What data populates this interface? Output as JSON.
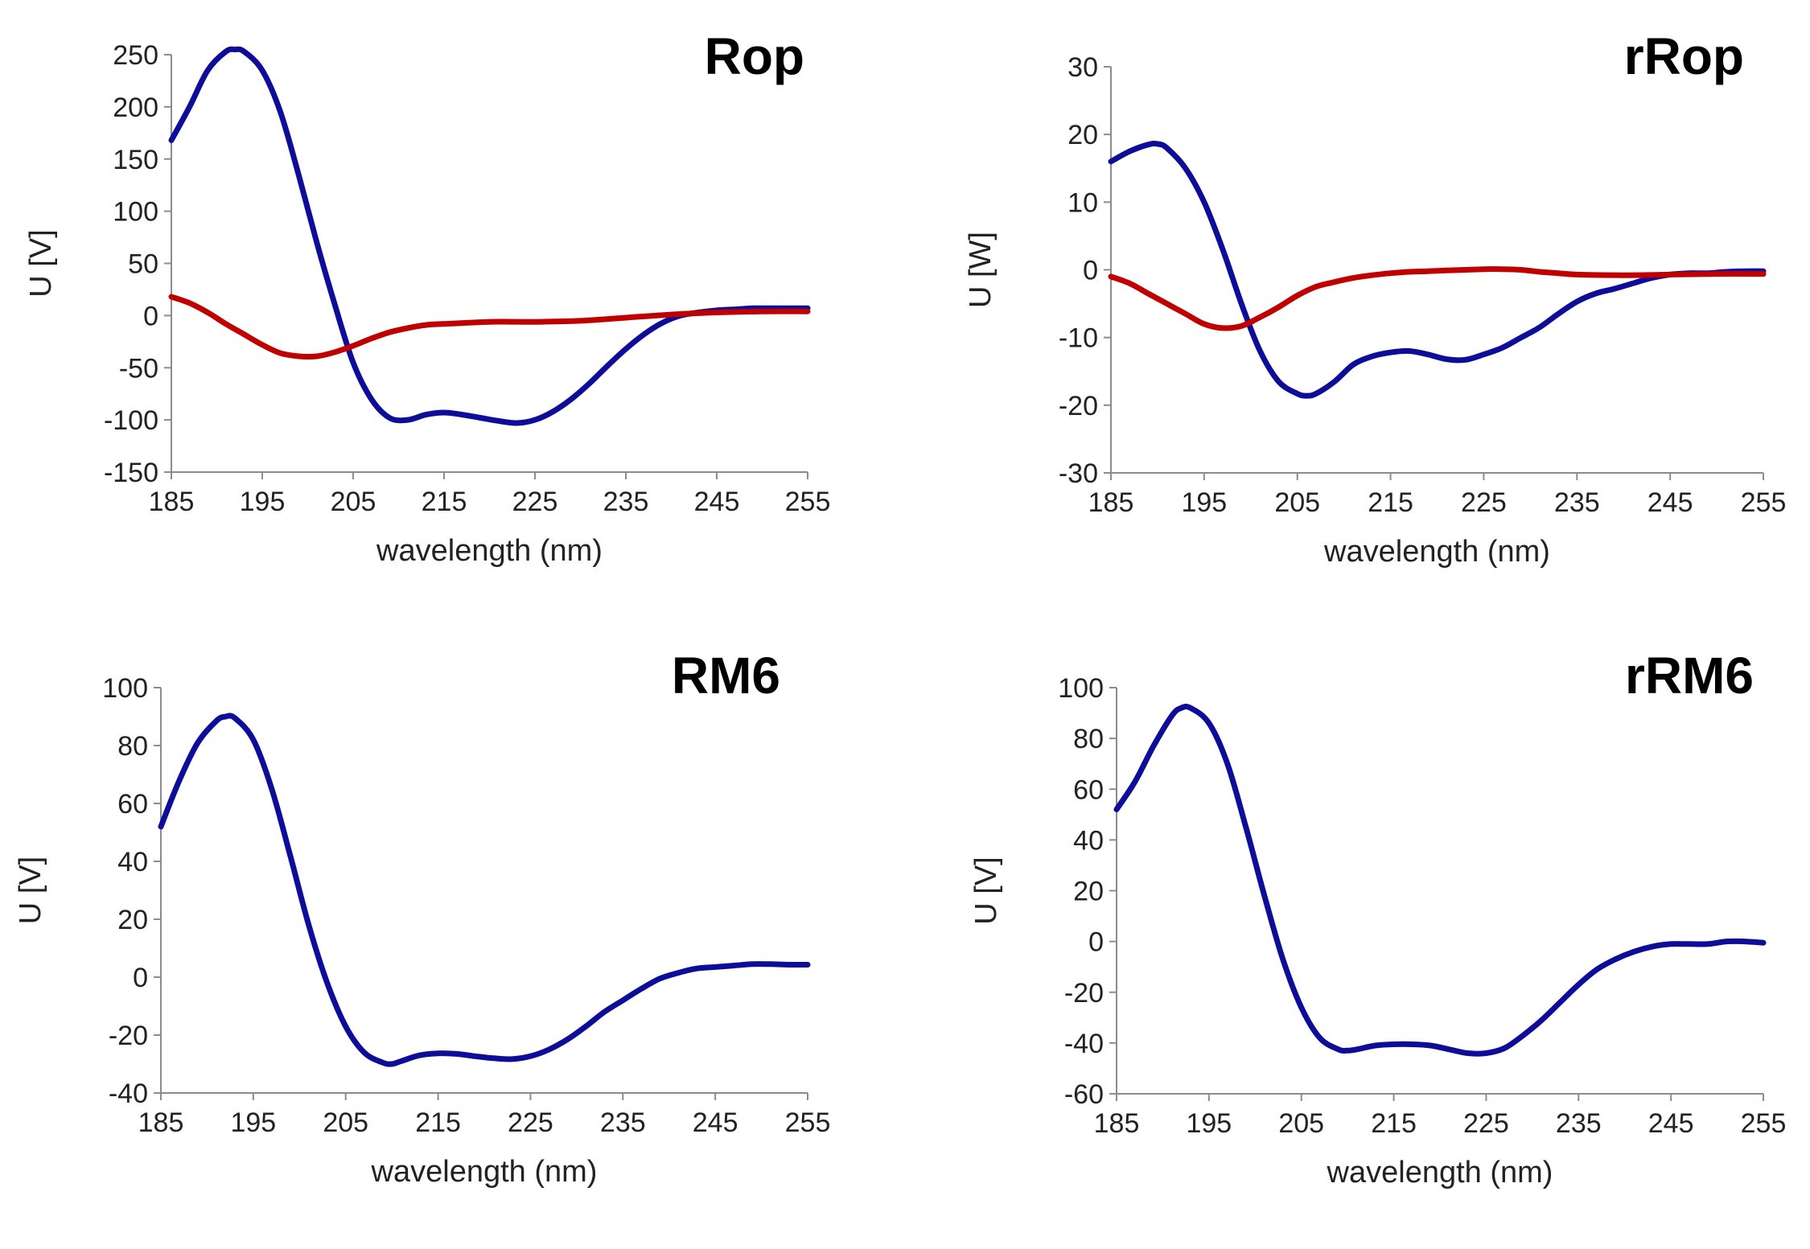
{
  "chart_data": [
    {
      "type": "line",
      "title": "Rop",
      "xlabel": "wavelength (nm)",
      "ylabel": "U [V]",
      "xlim": [
        185,
        255
      ],
      "ylim": [
        -150,
        250
      ],
      "xticks": [
        "185",
        "195",
        "205",
        "215",
        "225",
        "235",
        "245",
        "255"
      ],
      "yticks": [
        "-150",
        "-100",
        "-50",
        "0",
        "50",
        "100",
        "150",
        "200",
        "250"
      ],
      "series": [
        {
          "name": "blue",
          "color": "#0d0d99",
          "x": [
            185,
            187,
            189,
            191,
            192,
            193,
            195,
            197,
            199,
            201,
            203,
            205,
            207,
            209,
            211,
            213,
            215,
            217,
            219,
            221,
            223,
            225,
            227,
            229,
            231,
            233,
            235,
            237,
            239,
            241,
            243,
            245,
            247,
            249,
            251,
            253,
            255
          ],
          "y": [
            168,
            200,
            235,
            253,
            255,
            253,
            235,
            195,
            135,
            70,
            10,
            -45,
            -80,
            -98,
            -100,
            -95,
            -93,
            -95,
            -98,
            -101,
            -103,
            -100,
            -92,
            -80,
            -65,
            -48,
            -32,
            -18,
            -7,
            0,
            3,
            5,
            6,
            7,
            7,
            7,
            7
          ]
        },
        {
          "name": "red",
          "color": "#c00000",
          "x": [
            185,
            187,
            189,
            191,
            193,
            195,
            197,
            199,
            201,
            203,
            205,
            207,
            209,
            211,
            213,
            215,
            220,
            225,
            230,
            235,
            240,
            245,
            250,
            255
          ],
          "y": [
            18,
            12,
            3,
            -8,
            -18,
            -28,
            -36,
            -39,
            -39,
            -35,
            -29,
            -22,
            -16,
            -12,
            -9,
            -8,
            -6,
            -6,
            -5,
            -2,
            1,
            3,
            4,
            4
          ]
        }
      ]
    },
    {
      "type": "line",
      "title": "rRop",
      "xlabel": "wavelength (nm)",
      "ylabel": "U [W]",
      "xlim": [
        185,
        255
      ],
      "ylim": [
        -30,
        30
      ],
      "xticks": [
        "185",
        "195",
        "205",
        "215",
        "225",
        "235",
        "245",
        "255"
      ],
      "yticks": [
        "-30",
        "-20",
        "-10",
        "0",
        "10",
        "20",
        "30"
      ],
      "series": [
        {
          "name": "blue",
          "color": "#0d0d99",
          "x": [
            185,
            187,
            189,
            190,
            191,
            193,
            195,
            197,
            199,
            201,
            203,
            205,
            206,
            207,
            209,
            211,
            213,
            215,
            217,
            219,
            221,
            223,
            225,
            227,
            229,
            231,
            233,
            235,
            237,
            239,
            241,
            243,
            245,
            247,
            249,
            251,
            253,
            255
          ],
          "y": [
            16,
            17.5,
            18.5,
            18.6,
            18,
            15,
            10,
            3,
            -5,
            -12,
            -16.5,
            -18.3,
            -18.6,
            -18.3,
            -16.5,
            -14,
            -12.8,
            -12.2,
            -12,
            -12.5,
            -13.2,
            -13.3,
            -12.5,
            -11.5,
            -10,
            -8.5,
            -6.5,
            -4.7,
            -3.5,
            -2.8,
            -2,
            -1.2,
            -0.7,
            -0.5,
            -0.5,
            -0.3,
            -0.2,
            -0.2
          ]
        },
        {
          "name": "red",
          "color": "#c00000",
          "x": [
            185,
            187,
            189,
            191,
            193,
            195,
            197,
            199,
            201,
            203,
            205,
            207,
            209,
            211,
            213,
            215,
            217,
            219,
            221,
            223,
            225,
            227,
            229,
            231,
            233,
            235,
            240,
            245,
            250,
            255
          ],
          "y": [
            -1,
            -2,
            -3.5,
            -5,
            -6.5,
            -8,
            -8.6,
            -8.3,
            -7,
            -5.5,
            -3.8,
            -2.5,
            -1.8,
            -1.2,
            -0.8,
            -0.5,
            -0.3,
            -0.2,
            -0.1,
            0,
            0.1,
            0.1,
            0,
            -0.3,
            -0.5,
            -0.7,
            -0.8,
            -0.7,
            -0.6,
            -0.6
          ]
        }
      ]
    },
    {
      "type": "line",
      "title": "RM6",
      "xlabel": "wavelength (nm)",
      "ylabel": "U [V]",
      "xlim": [
        185,
        255
      ],
      "ylim": [
        -40,
        100
      ],
      "xticks": [
        "185",
        "195",
        "205",
        "215",
        "225",
        "235",
        "245",
        "255"
      ],
      "yticks": [
        "-40",
        "-20",
        "0",
        "20",
        "40",
        "60",
        "80",
        "100"
      ],
      "series": [
        {
          "name": "blue",
          "color": "#0d0d99",
          "x": [
            185,
            187,
            189,
            191,
            192,
            193,
            195,
            197,
            199,
            201,
            203,
            205,
            207,
            209,
            210,
            211,
            213,
            215,
            217,
            219,
            221,
            223,
            225,
            227,
            229,
            231,
            233,
            235,
            237,
            239,
            241,
            243,
            245,
            247,
            249,
            251,
            253,
            255
          ],
          "y": [
            52,
            68,
            81,
            88.5,
            90,
            89.5,
            82,
            65,
            42,
            18,
            -2,
            -17,
            -26,
            -29.5,
            -30,
            -29,
            -27,
            -26.3,
            -26.5,
            -27.3,
            -28,
            -28.3,
            -27.3,
            -25,
            -21.5,
            -17,
            -12,
            -8,
            -4,
            -0.5,
            1.5,
            3,
            3.5,
            4,
            4.5,
            4.5,
            4.3,
            4.3
          ]
        }
      ]
    },
    {
      "type": "line",
      "title": "rRM6",
      "xlabel": "wavelength (nm)",
      "ylabel": "U [V]",
      "xlim": [
        185,
        255
      ],
      "ylim": [
        -60,
        100
      ],
      "xticks": [
        "185",
        "195",
        "205",
        "215",
        "225",
        "235",
        "245",
        "255"
      ],
      "yticks": [
        "-60",
        "-40",
        "-20",
        "0",
        "20",
        "40",
        "60",
        "80",
        "100"
      ],
      "series": [
        {
          "name": "blue",
          "color": "#0d0d99",
          "x": [
            185,
            187,
            189,
            191,
            192,
            193,
            195,
            197,
            199,
            201,
            203,
            205,
            207,
            209,
            210,
            211,
            213,
            215,
            217,
            219,
            221,
            223,
            225,
            227,
            229,
            231,
            233,
            235,
            237,
            239,
            241,
            243,
            245,
            247,
            249,
            251,
            253,
            255
          ],
          "y": [
            52,
            63,
            77,
            89,
            92,
            92,
            86,
            70,
            45,
            18,
            -7,
            -26,
            -38,
            -42.5,
            -43,
            -42.5,
            -41,
            -40.5,
            -40.5,
            -41,
            -42.5,
            -44,
            -44,
            -42,
            -37,
            -31,
            -24,
            -17,
            -11,
            -7,
            -4,
            -2,
            -1,
            -1,
            -1,
            0,
            0,
            -0.5
          ]
        }
      ]
    }
  ]
}
